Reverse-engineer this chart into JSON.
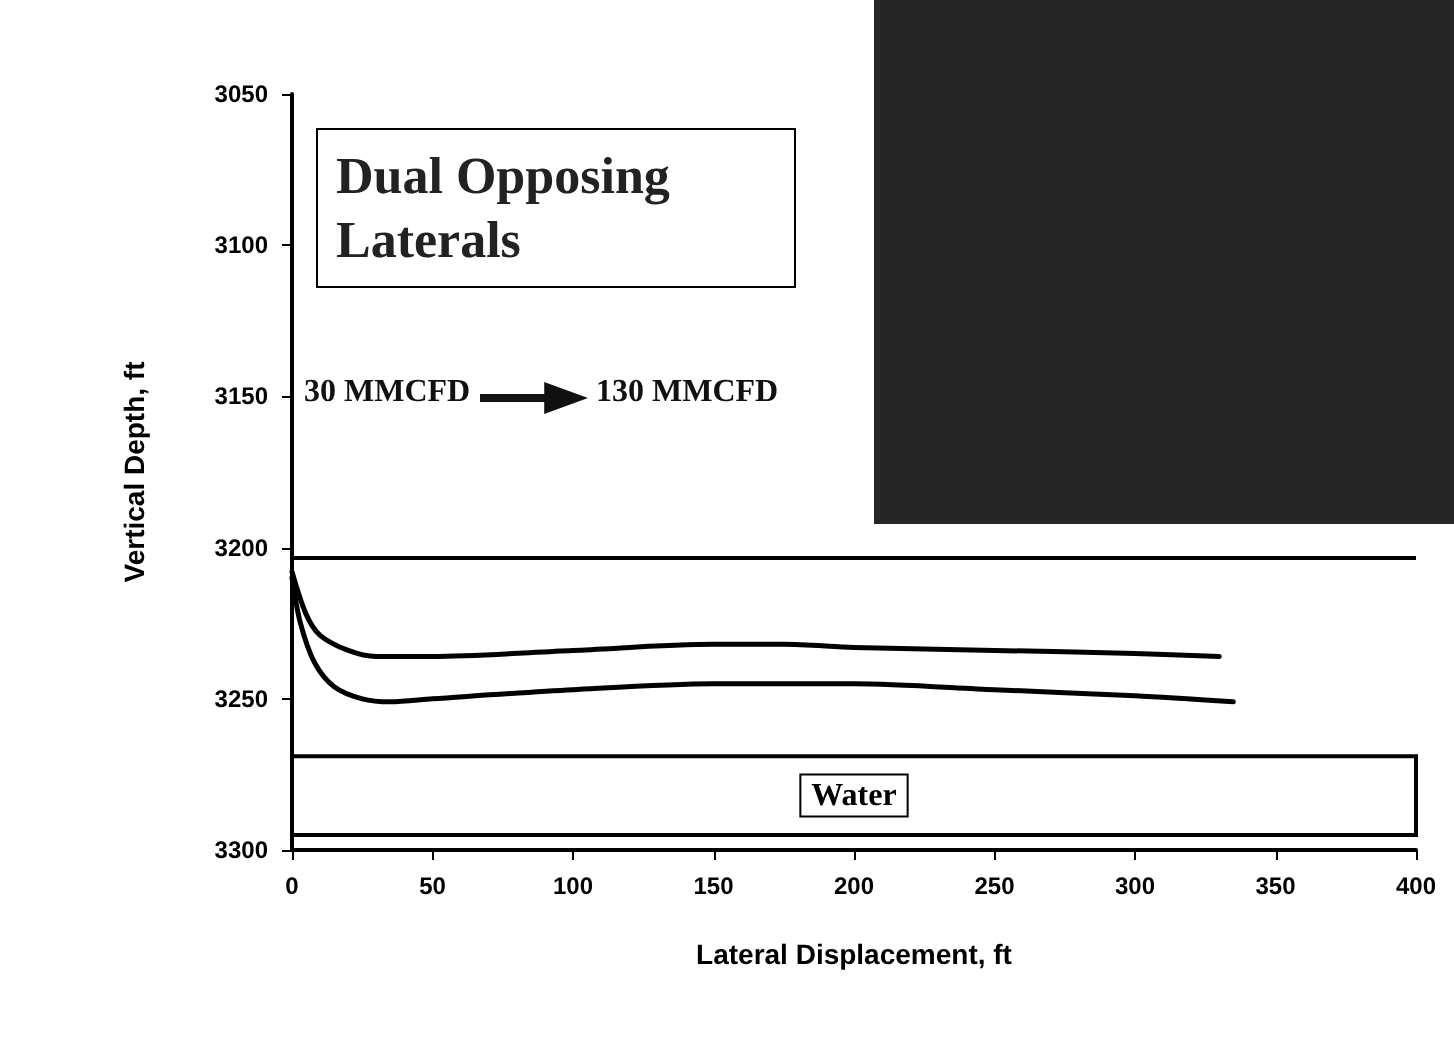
{
  "chart_data": {
    "type": "line",
    "title": "Dual Opposing Laterals",
    "xlabel": "Lateral Displacement, ft",
    "ylabel": "Vertical Depth, ft",
    "annotations": [
      "30 MMCFD",
      "130 MMCFD"
    ],
    "series": [
      {
        "color": "#000000",
        "x": [
          0,
          5,
          10,
          20,
          30,
          50,
          100,
          150,
          175,
          200,
          250,
          300,
          330
        ],
        "values": [
          3208,
          3222,
          3229,
          3234,
          3236,
          3236,
          3234,
          3232,
          3232,
          3233,
          3234,
          3235,
          3236
        ]
      },
      {
        "color": "#000000",
        "x": [
          0,
          3,
          8,
          15,
          25,
          35,
          50,
          100,
          150,
          175,
          200,
          250,
          300,
          335
        ],
        "values": [
          3210,
          3225,
          3238,
          3246,
          3250,
          3251,
          3250,
          3247,
          3245,
          3245,
          3245,
          3247,
          3249,
          3251
        ]
      }
    ],
    "ref_lines": [
      {
        "axis": "y",
        "value": 3203,
        "label": null,
        "color": "#000000",
        "line_style": "solid"
      }
    ],
    "bands": [
      {
        "axis": "y",
        "from": 3269,
        "to": 3295,
        "label": "Water",
        "color": "#ffffff"
      }
    ],
    "xlim": [
      0,
      400
    ],
    "xticks": [
      0,
      50,
      100,
      150,
      200,
      250,
      300,
      350,
      400
    ],
    "ylim": [
      3300,
      3050
    ],
    "yticks": [
      3050,
      3100,
      3150,
      3200,
      3250,
      3300
    ],
    "grid": false,
    "marker": "none",
    "line_style": "solid"
  }
}
